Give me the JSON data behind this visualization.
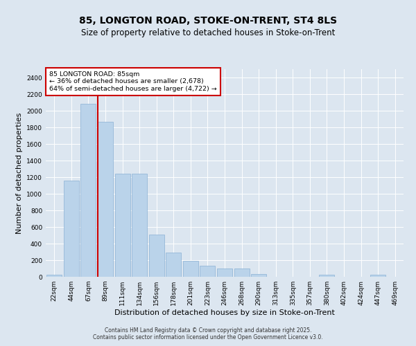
{
  "title1": "85, LONGTON ROAD, STOKE-ON-TRENT, ST4 8LS",
  "title2": "Size of property relative to detached houses in Stoke-on-Trent",
  "xlabel": "Distribution of detached houses by size in Stoke-on-Trent",
  "ylabel": "Number of detached properties",
  "categories": [
    "22sqm",
    "44sqm",
    "67sqm",
    "89sqm",
    "111sqm",
    "134sqm",
    "156sqm",
    "178sqm",
    "201sqm",
    "223sqm",
    "246sqm",
    "268sqm",
    "290sqm",
    "313sqm",
    "335sqm",
    "357sqm",
    "380sqm",
    "402sqm",
    "424sqm",
    "447sqm",
    "469sqm"
  ],
  "values": [
    25,
    1160,
    2080,
    1870,
    1240,
    1240,
    510,
    290,
    195,
    130,
    100,
    100,
    30,
    0,
    0,
    0,
    25,
    0,
    0,
    25,
    0
  ],
  "bar_color": "#bad3ea",
  "bar_edge_color": "#8ab0d4",
  "vline_color": "#cc0000",
  "vline_pos": 2.55,
  "annotation_text": "85 LONGTON ROAD: 85sqm\n← 36% of detached houses are smaller (2,678)\n64% of semi-detached houses are larger (4,722) →",
  "annotation_box_color": "#ffffff",
  "annotation_box_edge_color": "#cc0000",
  "ylim": [
    0,
    2500
  ],
  "yticks": [
    0,
    200,
    400,
    600,
    800,
    1000,
    1200,
    1400,
    1600,
    1800,
    2000,
    2200,
    2400
  ],
  "background_color": "#dce6f0",
  "grid_color": "#ffffff",
  "footer": "Contains HM Land Registry data © Crown copyright and database right 2025.\nContains public sector information licensed under the Open Government Licence v3.0.",
  "title_fontsize": 10,
  "subtitle_fontsize": 8.5,
  "tick_fontsize": 6.5,
  "label_fontsize": 8,
  "footer_fontsize": 5.5
}
